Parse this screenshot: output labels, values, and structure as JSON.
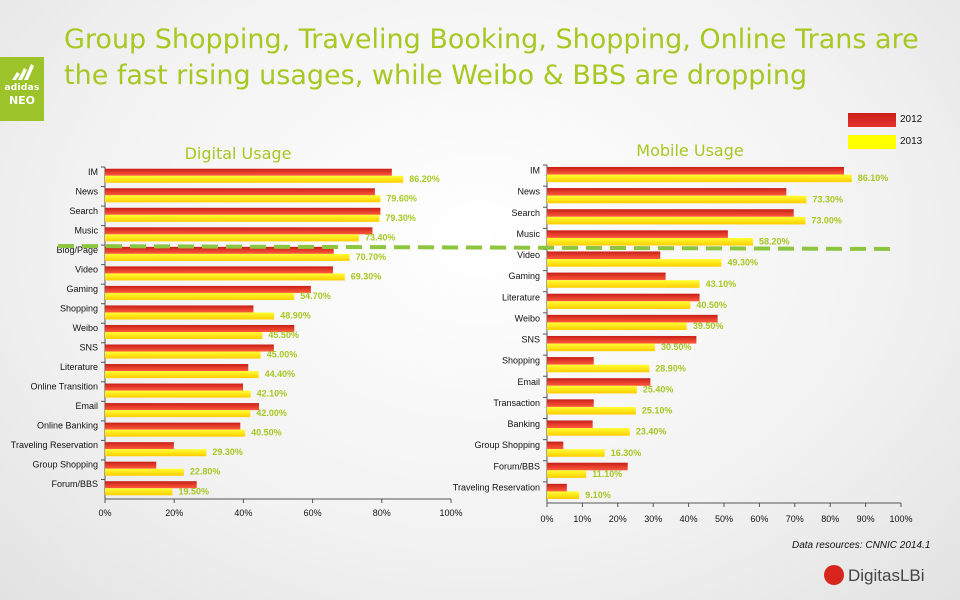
{
  "title_line1": "Group Shopping, Traveling Booking, Shopping, Online Trans are",
  "title_line2": "the fast rising usages, while Weibo & BBS are dropping",
  "logo": {
    "brand": "adidas",
    "sub": "NEO",
    "icon": "adidas-performance-logo-icon"
  },
  "legend": [
    {
      "label": "2012",
      "color": "#e8322b"
    },
    {
      "label": "2013",
      "color": "#ffff00"
    }
  ],
  "source": "Data resources:  CNNIC  2014.1",
  "company": "DigitasLBi",
  "colors": {
    "accent": "#a6c822",
    "label_green": "#a6c822",
    "dash": "#8cc63f"
  },
  "chart_data": [
    {
      "type": "bar",
      "orientation": "horizontal",
      "title": "Digital Usage",
      "categories": [
        "IM",
        "News",
        "Search",
        "Music",
        "Blog/Page",
        "Video",
        "Gaming",
        "Shopping",
        "Weibo",
        "SNS",
        "Literature",
        "Online Transition",
        "Email",
        "Online Banking",
        "Traveling Reservation",
        "Group Shopping",
        "Forum/BBS"
      ],
      "series": [
        {
          "name": "2012",
          "values": [
            82.9,
            78.0,
            79.6,
            77.3,
            66.1,
            65.9,
            59.5,
            42.9,
            54.7,
            48.8,
            41.4,
            39.9,
            44.5,
            39.1,
            19.9,
            14.8,
            26.5
          ]
        },
        {
          "name": "2013",
          "values": [
            86.2,
            79.6,
            79.3,
            73.4,
            70.7,
            69.3,
            54.7,
            48.9,
            45.5,
            45.0,
            44.4,
            42.1,
            42.0,
            40.5,
            29.3,
            22.8,
            19.5
          ]
        }
      ],
      "data_labels": [
        "86.20%",
        "79.60%",
        "79.30%",
        "73.40%",
        "70.70%",
        "69.30%",
        "54.70%",
        "48.90%",
        "45.50%",
        "45.00%",
        "44.40%",
        "42.10%",
        "42.00%",
        "40.50%",
        "29.30%",
        "22.80%",
        "19.50%"
      ],
      "xlim": [
        0,
        100
      ],
      "xticks": [
        "0%",
        "20%",
        "40%",
        "60%",
        "80%",
        "100%"
      ]
    },
    {
      "type": "bar",
      "orientation": "horizontal",
      "title": "Mobile Usage",
      "categories": [
        "IM",
        "News",
        "Search",
        "Music",
        "Video",
        "Gaming",
        "Literature",
        "Weibo",
        "SNS",
        "Shopping",
        "Email",
        "Transaction",
        "Banking",
        "Group Shopping",
        "Forum/BBS",
        "Traveling Reservation"
      ],
      "series": [
        {
          "name": "2012",
          "values": [
            83.9,
            67.6,
            69.7,
            51.1,
            32.0,
            33.5,
            43.1,
            48.2,
            42.2,
            13.2,
            29.2,
            13.2,
            12.9,
            4.6,
            22.8,
            5.6
          ]
        },
        {
          "name": "2013",
          "values": [
            86.1,
            73.3,
            73.0,
            58.2,
            49.3,
            43.1,
            40.5,
            39.5,
            30.5,
            28.9,
            25.4,
            25.1,
            23.4,
            16.3,
            11.1,
            9.1
          ]
        }
      ],
      "data_labels": [
        "86.10%",
        "73.30%",
        "73.00%",
        "58.20%",
        "49.30%",
        "43.10%",
        "40.50%",
        "39.50%",
        "30.50%",
        "28.90%",
        "25.40%",
        "25.10%",
        "23.40%",
        "16.30%",
        "11.10%",
        "9.10%"
      ],
      "xlim": [
        0,
        100
      ],
      "xticks": [
        "0%",
        "10%",
        "20%",
        "30%",
        "40%",
        "50%",
        "60%",
        "70%",
        "80%",
        "90%",
        "100%"
      ]
    }
  ]
}
